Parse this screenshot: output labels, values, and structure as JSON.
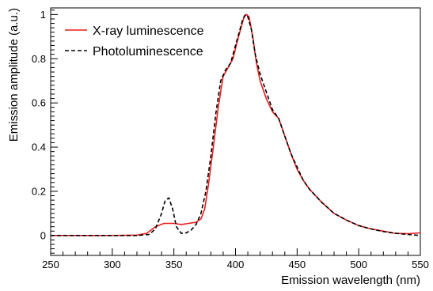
{
  "chart_data": {
    "type": "line",
    "xlabel": "Emission wavelength (nm)",
    "ylabel": "Emission amplitude (a.u.)",
    "xlim": [
      250,
      550
    ],
    "ylim": [
      -0.09,
      1.03
    ],
    "x_ticks": [
      250,
      300,
      350,
      400,
      450,
      500,
      550
    ],
    "y_ticks": [
      0,
      0.2,
      0.4,
      0.6,
      0.8,
      1
    ],
    "x_tick_labels": [
      "250",
      "300",
      "350",
      "400",
      "450",
      "500",
      "550"
    ],
    "y_tick_labels": [
      "0",
      "0.2",
      "0.4",
      "0.6",
      "0.8",
      "1"
    ],
    "grid": false,
    "legend_position": "top-left",
    "series": [
      {
        "name": "X-ray luminescence",
        "color": "#ee1c1c",
        "dash": "solid",
        "x": [
          250,
          300,
          320,
          328,
          335,
          342,
          350,
          356,
          362,
          368,
          372,
          375,
          378,
          382,
          386,
          390,
          394,
          398,
          401,
          404,
          407,
          409,
          411,
          414,
          417,
          420,
          425,
          430,
          435,
          440,
          445,
          450,
          455,
          460,
          470,
          480,
          490,
          500,
          510,
          520,
          530,
          540,
          550
        ],
        "y": [
          0.0,
          0.0,
          0.002,
          0.01,
          0.04,
          0.055,
          0.055,
          0.05,
          0.055,
          0.06,
          0.075,
          0.12,
          0.23,
          0.4,
          0.58,
          0.72,
          0.76,
          0.8,
          0.87,
          0.93,
          0.99,
          1.0,
          0.99,
          0.9,
          0.78,
          0.7,
          0.62,
          0.56,
          0.53,
          0.45,
          0.37,
          0.3,
          0.25,
          0.21,
          0.15,
          0.1,
          0.07,
          0.045,
          0.03,
          0.02,
          0.01,
          0.008,
          0.012
        ]
      },
      {
        "name": "Photoluminescence",
        "color": "#000000",
        "dash": "dashed",
        "x": [
          250,
          320,
          330,
          335,
          340,
          343,
          346,
          349,
          352,
          356,
          360,
          364,
          368,
          372,
          376,
          380,
          384,
          388,
          392,
          396,
          400,
          403,
          406,
          408,
          410,
          413,
          416,
          420,
          425,
          430,
          435,
          440,
          445,
          450,
          455,
          460,
          470,
          480,
          490,
          500,
          510,
          520,
          530,
          540,
          550
        ],
        "y": [
          0.0,
          0.0,
          0.005,
          0.03,
          0.1,
          0.16,
          0.17,
          0.12,
          0.04,
          0.01,
          0.012,
          0.025,
          0.05,
          0.1,
          0.2,
          0.36,
          0.55,
          0.7,
          0.75,
          0.78,
          0.86,
          0.92,
          0.98,
          1.0,
          0.99,
          0.93,
          0.82,
          0.73,
          0.65,
          0.57,
          0.53,
          0.45,
          0.37,
          0.31,
          0.25,
          0.21,
          0.15,
          0.1,
          0.07,
          0.045,
          0.03,
          0.018,
          0.01,
          0.005,
          0.0
        ]
      }
    ]
  }
}
